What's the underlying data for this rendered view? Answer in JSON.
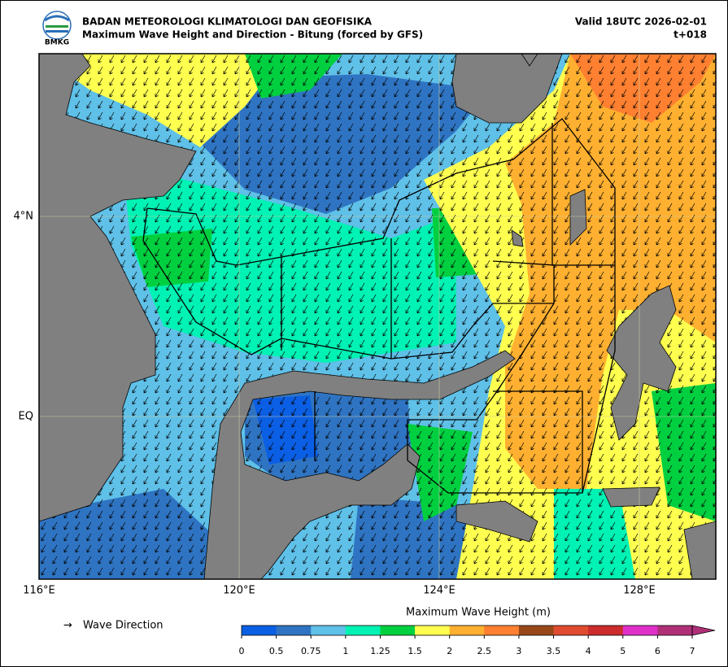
{
  "header": {
    "agency": "BADAN METEOROLOGI KLIMATOLOGI DAN GEOFISIKA",
    "title": "Maximum Wave Height and Direction - Bitung (forced by GFS)",
    "valid": "Valid 18UTC 2026-02-01",
    "lead": "t+018",
    "logo_text": "BMKG"
  },
  "map": {
    "lat_labels": [
      "4°N",
      "EQ"
    ],
    "lon_labels": [
      "116°E",
      "120°E",
      "124°E",
      "128°E"
    ]
  },
  "legend": {
    "arrow": "→",
    "label": "Wave Direction"
  },
  "colorbar": {
    "title": "Maximum Wave Height (m)",
    "ticks": [
      0,
      0.5,
      0.75,
      1,
      1.25,
      1.5,
      2,
      2.5,
      3,
      3.5,
      4,
      5,
      6,
      7
    ],
    "colors": [
      "#0b5fe4",
      "#2f74c2",
      "#5fc0e8",
      "#00f2b4",
      "#00d040",
      "#ffff50",
      "#ffb030",
      "#ff8030",
      "#984818",
      "#e04c30",
      "#cc2c2c",
      "#e030c8",
      "#b03078"
    ]
  }
}
